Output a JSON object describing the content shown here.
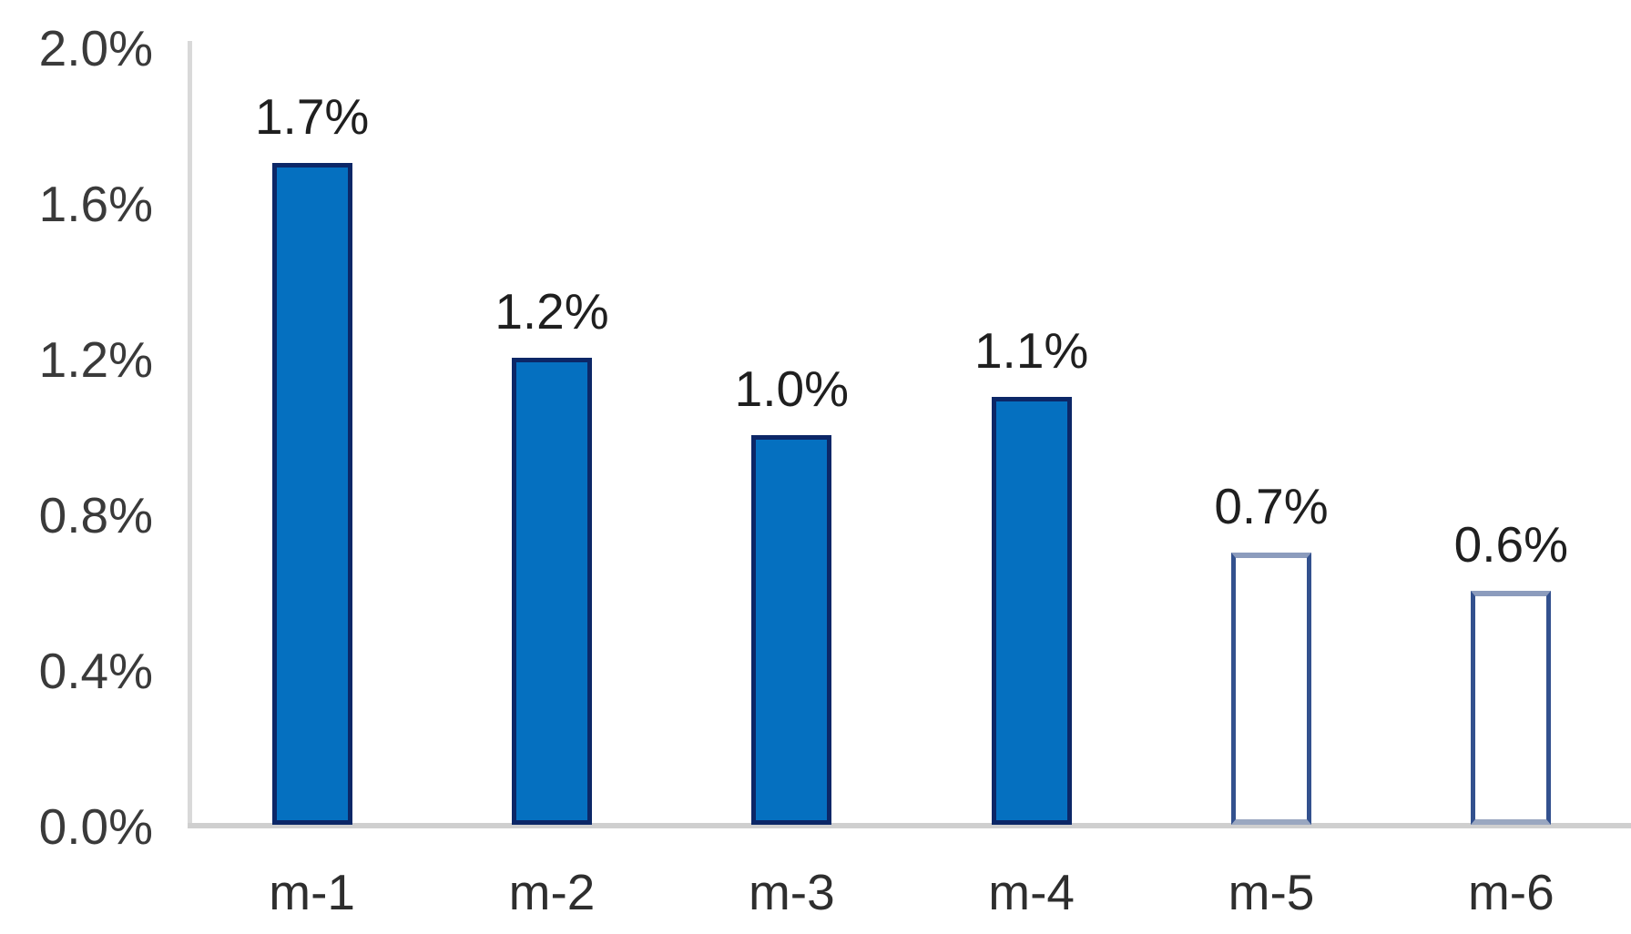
{
  "chart_data": {
    "type": "bar",
    "title": "",
    "xlabel": "",
    "ylabel": "",
    "categories": [
      "m-1",
      "m-2",
      "m-3",
      "m-4",
      "m-5",
      "m-6"
    ],
    "values": [
      1.7,
      1.2,
      1.0,
      1.1,
      0.7,
      0.6
    ],
    "data_labels": [
      "1.7%",
      "1.2%",
      "1.0%",
      "1.1%",
      "0.7%",
      "0.6%"
    ],
    "bar_styles": [
      "solid",
      "solid",
      "solid",
      "solid",
      "outline",
      "outline"
    ],
    "y_ticks": [
      {
        "label": "2.0%",
        "value": 2.0
      },
      {
        "label": "1.6%",
        "value": 1.6
      },
      {
        "label": "1.2%",
        "value": 1.2
      },
      {
        "label": "0.8%",
        "value": 0.8
      },
      {
        "label": "0.4%",
        "value": 0.4
      },
      {
        "label": "0.0%",
        "value": 0.0
      }
    ],
    "ylim": [
      0.0,
      2.0
    ],
    "grid": false,
    "legend_position": "none",
    "colors": {
      "bar_fill": "#0570C0",
      "bar_border": "#0C2767",
      "outline_bar_fill": "#FFFFFF",
      "outline_bar_border_side": "#33518E",
      "outline_bar_border_top": "#8C9CBD",
      "outline_bar_border_bottom": "#9AA7C0",
      "y_axis_line": "#D9D9D9",
      "x_axis_line": "#CFCFCF",
      "value_label_text": "#1F1F1F",
      "tick_label_text": "#3A3A3A",
      "category_label_text": "#2E2E2E",
      "background": "#FFFFFF"
    }
  }
}
